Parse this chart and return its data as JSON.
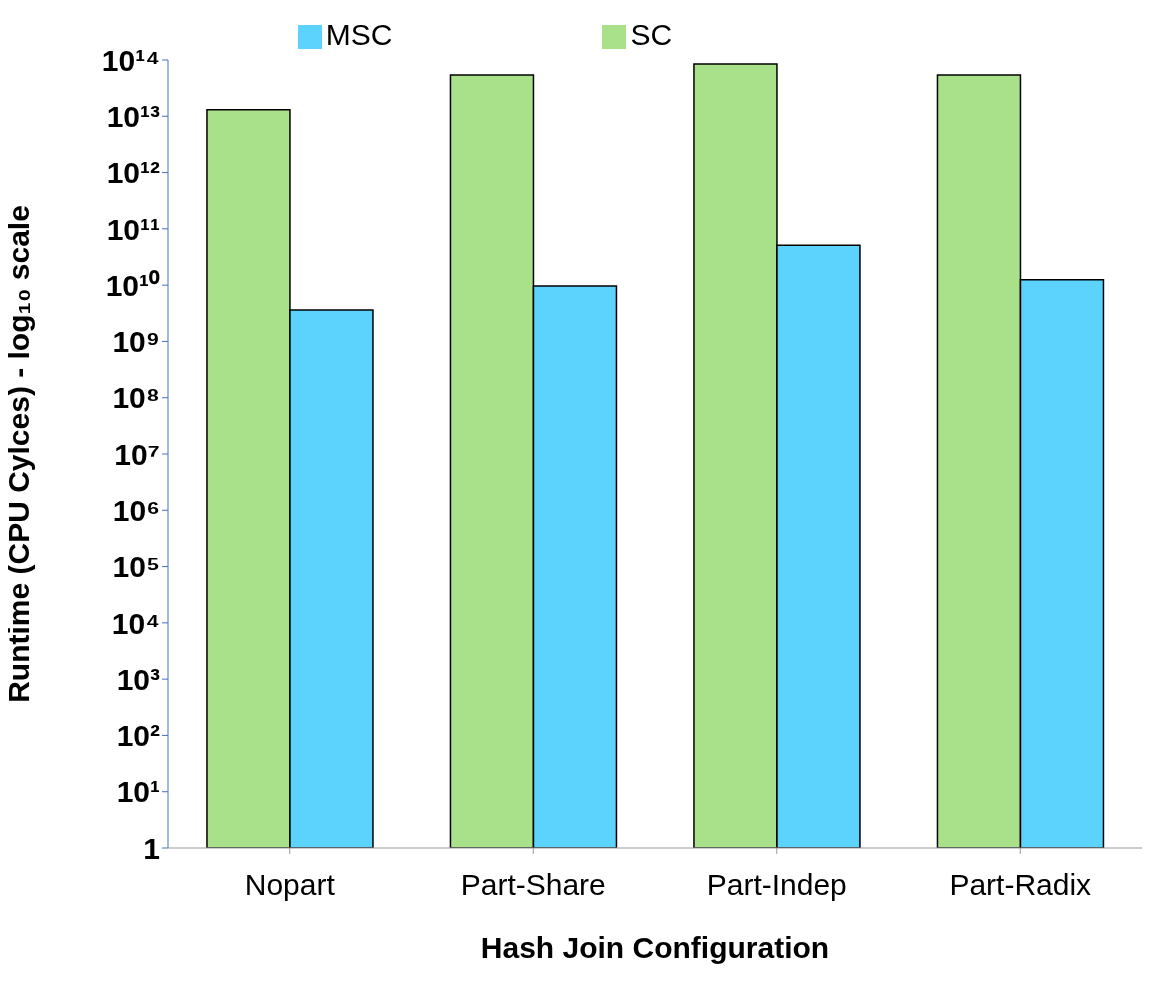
{
  "chart_data": {
    "type": "bar",
    "xlabel": "Hash Join Configuration",
    "ylabel": "Runtime (CPU Cylces) - log₁₀ scale",
    "categories": [
      "Nopart",
      "Part-Share",
      "Part-Indep",
      "Part-Radix"
    ],
    "series": [
      {
        "name": "SC",
        "color": "#a9e18b",
        "values": [
          13000000000000.0,
          54000000000000.0,
          85000000000000.0,
          54000000000000.0
        ]
      },
      {
        "name": "MSC",
        "color": "#5bd3fc",
        "values": [
          3600000000.0,
          9700000000.0,
          51000000000.0,
          12500000000.0
        ]
      }
    ],
    "log": true,
    "ylim": [
      1,
      100000000000000.0
    ],
    "yticks": [
      1,
      {
        "value": 10,
        "label": "10¹"
      },
      {
        "value": 100,
        "label": "10²"
      },
      {
        "value": 1000.0,
        "label": "10³"
      },
      {
        "value": 10000.0,
        "label": "10⁴"
      },
      {
        "value": 100000.0,
        "label": "10⁵"
      },
      {
        "value": 1000000.0,
        "label": "10⁶"
      },
      {
        "value": 10000000.0,
        "label": "10⁷"
      },
      {
        "value": 100000000.0,
        "label": "10⁸"
      },
      {
        "value": 1000000000.0,
        "label": "10⁹"
      },
      {
        "value": 10000000000.0,
        "label": "10¹⁰"
      },
      {
        "value": 100000000000.0,
        "label": "10¹¹"
      },
      {
        "value": 1000000000000.0,
        "label": "10¹²"
      },
      {
        "value": 10000000000000.0,
        "label": "10¹³"
      },
      {
        "value": 100000000000000.0,
        "label": "10¹⁴"
      }
    ],
    "grid": false,
    "legend": "top"
  }
}
